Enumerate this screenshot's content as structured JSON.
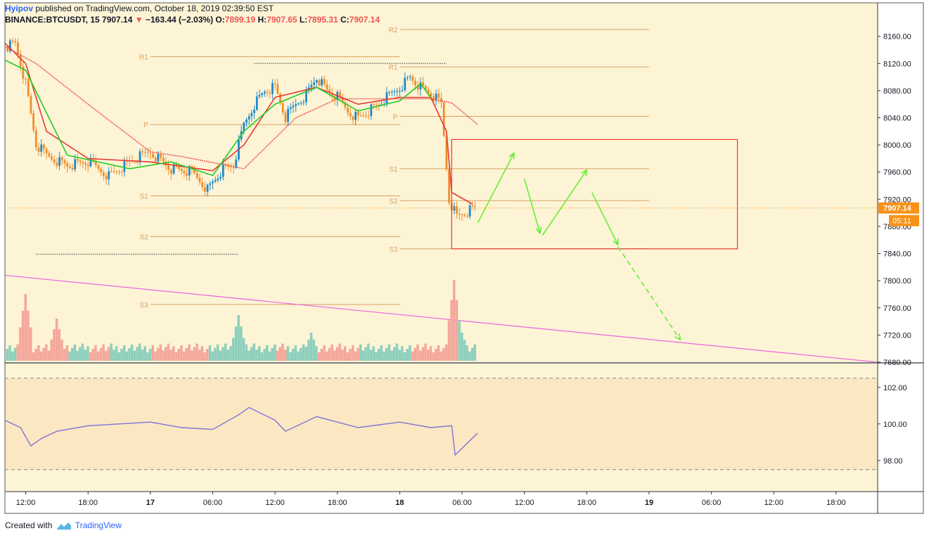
{
  "header": {
    "author": "Hyipov",
    "published_text": "published on TradingView.com, October 18, 2019 02:39:50 EST",
    "symbol": "BINANCE:BTCUSDT, 15",
    "last": "7907.14",
    "change": "−163.44 (−2.03%)",
    "open_label": "O:",
    "open": "7899.19",
    "high_label": "H:",
    "high": "7907.65",
    "low_label": "L:",
    "low": "7895.31",
    "close_label": "C:",
    "close": "7907.14"
  },
  "footer": {
    "created_with": "Created with",
    "brand": "TradingView"
  },
  "colors": {
    "chart_bg": "#fdf4d6",
    "rsi_band": "#fbe8c2",
    "candle_up": "#1e88c9",
    "candle_down": "#ef8e2b",
    "ema_fast": "#22cc22",
    "ema_slow": "#e53935",
    "pivot": "#d9a060",
    "trendline": "#e865e0",
    "forecast": "#66ee33",
    "box": "#e53935",
    "vol_up": "#8dcfbd",
    "vol_down": "#f4a79b",
    "rsi_line": "#7e72d6",
    "price_label": "#f7931a"
  },
  "chart_data": [
    {
      "type": "candlestick",
      "title": "BINANCE:BTCUSDT, 15",
      "xlabel": "",
      "ylabel": "",
      "ylim": [
        7680,
        8170
      ],
      "y_ticks": [
        "8160.00",
        "8120.00",
        "8080.00",
        "8040.00",
        "8000.00",
        "7960.00",
        "7920.00",
        "7880.00",
        "7840.00",
        "7800.00",
        "7760.00",
        "7720.00",
        "7680.00"
      ],
      "x_ticks": [
        "12:00",
        "18:00",
        "17",
        "06:00",
        "12:00",
        "18:00",
        "18",
        "06:00",
        "12:00",
        "18:00",
        "19",
        "06:00",
        "12:00",
        "18:00"
      ],
      "time_range": [
        "2019-10-16 10:00",
        "2019-10-19 22:00"
      ],
      "current_price_label": "7907.14",
      "countdown_label": "05:11",
      "pivot_levels": [
        {
          "label": "R1",
          "value": 8130,
          "period": "Oct 17"
        },
        {
          "label": "P",
          "value": 8030,
          "period": "Oct 17"
        },
        {
          "label": "S1",
          "value": 7925,
          "period": "Oct 17"
        },
        {
          "label": "S2",
          "value": 7865,
          "period": "Oct 17"
        },
        {
          "label": "S3",
          "value": 7765,
          "period": "Oct 17"
        },
        {
          "label": "R2",
          "value": 8170,
          "period": "Oct 18"
        },
        {
          "label": "R1",
          "value": 8115,
          "period": "Oct 18"
        },
        {
          "label": "P",
          "value": 8042,
          "period": "Oct 18"
        },
        {
          "label": "S1",
          "value": 7965,
          "period": "Oct 18"
        },
        {
          "label": "S2",
          "value": 7918,
          "period": "Oct 18"
        },
        {
          "label": "S3",
          "value": 7847,
          "period": "Oct 18"
        }
      ],
      "price_path": [
        [
          "2019-10-16 10:00",
          8145
        ],
        [
          "2019-10-16 11:00",
          8150
        ],
        [
          "2019-10-16 12:00",
          8090
        ],
        [
          "2019-10-16 13:00",
          8000
        ],
        [
          "2019-10-16 14:00",
          7985
        ],
        [
          "2019-10-16 16:00",
          7970
        ],
        [
          "2019-10-16 18:00",
          7975
        ],
        [
          "2019-10-16 20:00",
          7955
        ],
        [
          "2019-10-16 22:00",
          7975
        ],
        [
          "2019-10-17 00:00",
          7990
        ],
        [
          "2019-10-17 02:00",
          7965
        ],
        [
          "2019-10-17 04:00",
          7960
        ],
        [
          "2019-10-17 05:30",
          7935
        ],
        [
          "2019-10-17 07:00",
          7965
        ],
        [
          "2019-10-17 08:00",
          7970
        ],
        [
          "2019-10-17 09:00",
          8030
        ],
        [
          "2019-10-17 10:00",
          8060
        ],
        [
          "2019-10-17 11:00",
          8080
        ],
        [
          "2019-10-17 12:00",
          8085
        ],
        [
          "2019-10-17 13:00",
          8040
        ],
        [
          "2019-10-17 14:00",
          8060
        ],
        [
          "2019-10-17 15:00",
          8075
        ],
        [
          "2019-10-17 16:00",
          8100
        ],
        [
          "2019-10-17 17:00",
          8080
        ],
        [
          "2019-10-17 18:00",
          8070
        ],
        [
          "2019-10-17 19:00",
          8050
        ],
        [
          "2019-10-17 20:00",
          8040
        ],
        [
          "2019-10-17 22:00",
          8060
        ],
        [
          "2019-10-18 00:00",
          8085
        ],
        [
          "2019-10-18 01:00",
          8100
        ],
        [
          "2019-10-18 02:00",
          8085
        ],
        [
          "2019-10-18 03:00",
          8075
        ],
        [
          "2019-10-18 04:00",
          8060
        ],
        [
          "2019-10-18 04:45",
          7920
        ],
        [
          "2019-10-18 05:30",
          7895
        ],
        [
          "2019-10-18 07:15",
          7907.14
        ]
      ],
      "ema_fast": [
        [
          "2019-10-16 10:00",
          8125
        ],
        [
          "2019-10-16 12:00",
          8110
        ],
        [
          "2019-10-16 16:00",
          7985
        ],
        [
          "2019-10-16 22:00",
          7965
        ],
        [
          "2019-10-17 02:00",
          7975
        ],
        [
          "2019-10-17 06:00",
          7955
        ],
        [
          "2019-10-17 09:00",
          8020
        ],
        [
          "2019-10-17 12:00",
          8060
        ],
        [
          "2019-10-17 16:00",
          8085
        ],
        [
          "2019-10-17 20:00",
          8050
        ],
        [
          "2019-10-18 00:00",
          8065
        ],
        [
          "2019-10-18 02:00",
          8090
        ],
        [
          "2019-10-18 03:00",
          8070
        ]
      ],
      "ema_slow": [
        [
          "2019-10-16 10:00",
          8150
        ],
        [
          "2019-10-16 12:00",
          8120
        ],
        [
          "2019-10-16 14:00",
          8020
        ],
        [
          "2019-10-16 18:00",
          7980
        ],
        [
          "2019-10-17 00:00",
          7975
        ],
        [
          "2019-10-17 06:00",
          7962
        ],
        [
          "2019-10-17 09:00",
          8000
        ],
        [
          "2019-10-17 12:00",
          8070
        ],
        [
          "2019-10-17 16:00",
          8085
        ],
        [
          "2019-10-17 20:00",
          8060
        ],
        [
          "2019-10-18 00:00",
          8070
        ],
        [
          "2019-10-18 03:00",
          8070
        ],
        [
          "2019-10-18 04:30",
          8020
        ],
        [
          "2019-10-18 05:00",
          7930
        ],
        [
          "2019-10-18 07:00",
          7913
        ]
      ],
      "trailing_stop": [
        [
          "2019-10-16 10:00",
          8145
        ],
        [
          "2019-10-16 13:00",
          8120
        ],
        [
          "2019-10-16 18:00",
          8060
        ],
        [
          "2019-10-17 00:00",
          7990
        ],
        [
          "2019-10-17 03:00",
          7983
        ],
        [
          "2019-10-17 09:00",
          7965
        ],
        [
          "2019-10-17 14:00",
          8040
        ],
        [
          "2019-10-17 18:00",
          8068
        ],
        [
          "2019-10-18 03:00",
          8068
        ],
        [
          "2019-10-18 05:00",
          8062
        ],
        [
          "2019-10-18 07:30",
          8030
        ]
      ],
      "trendline": [
        [
          "2019-10-16 10:00",
          7808
        ],
        [
          "2019-10-19 22:00",
          7680
        ]
      ],
      "forecast_box": {
        "time": [
          "2019-10-18 05:00",
          "2019-10-19 08:30"
        ],
        "price": [
          7847,
          8008
        ]
      },
      "forecast_path": [
        [
          "2019-10-18 07:30",
          7885
        ],
        [
          "2019-10-18 11:00",
          7988
        ],
        [
          "2019-10-18 12:00",
          7950
        ],
        [
          "2019-10-18 13:30",
          7870
        ],
        [
          "2019-10-18 13:45",
          7867
        ],
        [
          "2019-10-18 18:00",
          7963
        ],
        [
          "2019-10-18 18:30",
          7930
        ],
        [
          "2019-10-18 21:00",
          7853
        ]
      ],
      "forecast_dashed": [
        [
          "2019-10-18 21:00",
          7850
        ],
        [
          "2019-10-19 03:00",
          7713
        ]
      ],
      "dotted_levels": [
        {
          "value": 8120,
          "time": [
            "2019-10-17 10:00",
            "2019-10-18 04:30"
          ]
        },
        {
          "value": 7839,
          "time": [
            "2019-10-16 13:00",
            "2019-10-17 08:30"
          ]
        }
      ],
      "volume": [
        {
          "time": "2019-10-16 12:00",
          "value": 9.5
        },
        {
          "time": "2019-10-16 15:00",
          "value": 6.0
        },
        {
          "time": "2019-10-17 08:30",
          "value": 6.5
        },
        {
          "time": "2019-10-17 15:30",
          "value": 4.0
        },
        {
          "time": "2019-10-18 05:15",
          "value": 11.5
        },
        {
          "time": "2019-10-18 06:00",
          "value": 4.0
        }
      ]
    },
    {
      "type": "line",
      "title": "",
      "xlabel": "",
      "ylabel": "",
      "ylim": [
        96.3,
        103.3
      ],
      "band": [
        97.5,
        102.5
      ],
      "y_ticks": [
        "102.00",
        "100.00",
        "98.00"
      ],
      "series": [
        {
          "values": [
            [
              "2019-10-16 10:00",
              100.2
            ],
            [
              "2019-10-16 11:30",
              99.8
            ],
            [
              "2019-10-16 12:30",
              98.8
            ],
            [
              "2019-10-16 13:30",
              99.2
            ],
            [
              "2019-10-16 15:00",
              99.6
            ],
            [
              "2019-10-16 18:00",
              99.9
            ],
            [
              "2019-10-17 00:00",
              100.1
            ],
            [
              "2019-10-17 03:00",
              99.8
            ],
            [
              "2019-10-17 06:00",
              99.7
            ],
            [
              "2019-10-17 08:30",
              100.5
            ],
            [
              "2019-10-17 09:30",
              100.9
            ],
            [
              "2019-10-17 12:00",
              100.2
            ],
            [
              "2019-10-17 13:00",
              99.6
            ],
            [
              "2019-10-17 16:00",
              100.4
            ],
            [
              "2019-10-17 20:00",
              99.8
            ],
            [
              "2019-10-18 00:00",
              100.1
            ],
            [
              "2019-10-18 03:00",
              99.8
            ],
            [
              "2019-10-18 05:00",
              99.9
            ],
            [
              "2019-10-18 05:20",
              98.3
            ],
            [
              "2019-10-18 07:30",
              99.5
            ]
          ]
        }
      ]
    }
  ]
}
